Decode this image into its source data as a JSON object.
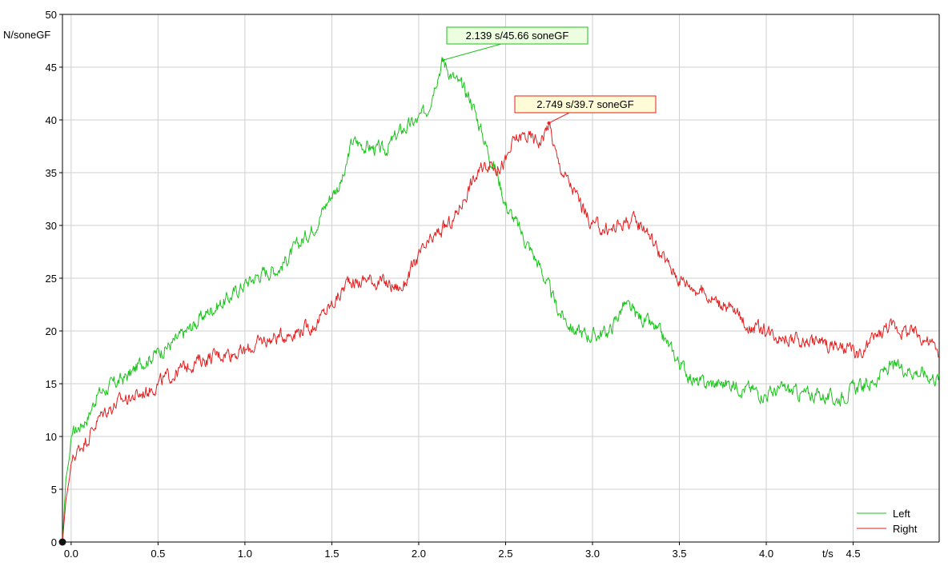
{
  "chart_data": {
    "type": "line",
    "ylabel": "N/soneGF",
    "xlabel": "t/s",
    "xlim": [
      -0.05,
      4.995
    ],
    "ylim": [
      0,
      50
    ],
    "x_ticks": [
      0.0,
      0.5,
      1.0,
      1.5,
      2.0,
      2.5,
      3.0,
      3.5,
      4.0,
      4.5
    ],
    "x_tick_labels": [
      "0.0",
      "0.5",
      "1.0",
      "1.5",
      "2.0",
      "2.5",
      "3.0",
      "3.5",
      "4.0",
      "4.5"
    ],
    "y_ticks": [
      0,
      5,
      10,
      15,
      20,
      25,
      30,
      35,
      40,
      45,
      50
    ],
    "y_tick_labels": [
      "0",
      "5",
      "10",
      "15",
      "20",
      "25",
      "30",
      "35",
      "40",
      "45",
      "50"
    ],
    "grid": true,
    "legend_position": "bottom-right",
    "series": [
      {
        "name": "Left",
        "color": "#1cc21c",
        "x": [
          -0.05,
          -0.04,
          -0.03,
          -0.01,
          0.0,
          0.05,
          0.1,
          0.15,
          0.2,
          0.25,
          0.3,
          0.35,
          0.4,
          0.45,
          0.5,
          0.55,
          0.6,
          0.7,
          0.8,
          0.9,
          1.0,
          1.1,
          1.2,
          1.3,
          1.4,
          1.5,
          1.55,
          1.58,
          1.6,
          1.62,
          1.7,
          1.8,
          1.85,
          1.9,
          2.0,
          2.05,
          2.1,
          2.139,
          2.2,
          2.3,
          2.4,
          2.45,
          2.5,
          2.6,
          2.7,
          2.8,
          2.9,
          3.0,
          3.1,
          3.18,
          3.25,
          3.3,
          3.4,
          3.5,
          3.6,
          3.7,
          3.8,
          3.9,
          4.0,
          4.1,
          4.2,
          4.3,
          4.4,
          4.5,
          4.6,
          4.7,
          4.8,
          4.9,
          4.995
        ],
        "values": [
          0,
          3,
          6,
          8,
          10,
          11,
          12,
          14,
          14.5,
          15,
          15.5,
          16,
          17,
          17.5,
          18,
          18.5,
          19,
          20.5,
          22,
          23,
          24.5,
          25.5,
          26,
          28,
          30,
          33,
          34,
          35,
          37,
          38,
          37.5,
          37,
          38,
          39,
          40,
          41,
          44,
          45.66,
          44,
          42,
          37,
          35,
          32,
          29,
          26,
          22,
          20,
          19.5,
          20,
          22.5,
          21.5,
          21,
          19.5,
          17,
          15,
          15,
          15,
          14.5,
          14,
          14.5,
          14,
          14,
          13.5,
          14.5,
          15,
          16.5,
          16.5,
          16,
          15.5
        ]
      },
      {
        "name": "Right",
        "color": "#e41f1f",
        "x": [
          -0.05,
          -0.04,
          -0.03,
          -0.01,
          0.0,
          0.05,
          0.1,
          0.15,
          0.2,
          0.25,
          0.3,
          0.4,
          0.5,
          0.6,
          0.7,
          0.8,
          0.9,
          1.0,
          1.1,
          1.2,
          1.3,
          1.4,
          1.5,
          1.55,
          1.6,
          1.65,
          1.7,
          1.8,
          1.9,
          2.0,
          2.1,
          2.2,
          2.3,
          2.4,
          2.45,
          2.5,
          2.55,
          2.6,
          2.7,
          2.749,
          2.8,
          2.9,
          3.0,
          3.1,
          3.2,
          3.3,
          3.4,
          3.5,
          3.6,
          3.7,
          3.8,
          3.9,
          4.0,
          4.1,
          4.2,
          4.3,
          4.4,
          4.5,
          4.55,
          4.6,
          4.7,
          4.8,
          4.9,
          4.995
        ],
        "values": [
          0,
          2,
          4,
          6,
          7.5,
          9,
          10,
          11.5,
          12.5,
          13,
          13.5,
          14,
          15,
          16,
          17,
          17.5,
          18,
          18,
          19,
          19.5,
          20,
          20.5,
          22.5,
          23.5,
          25,
          24.5,
          25,
          24.5,
          24,
          27,
          29,
          30.5,
          34,
          36,
          35.5,
          36,
          38,
          38.5,
          38,
          39.7,
          36,
          33,
          30,
          29.5,
          30.5,
          30,
          27,
          25,
          24,
          23,
          22,
          20.5,
          20,
          19.5,
          19,
          19,
          18.5,
          18,
          17.5,
          19,
          20.5,
          20,
          19.5,
          18
        ]
      }
    ],
    "annotations": [
      {
        "text": "2.139 s/45.66 soneGF",
        "x": 2.139,
        "y": 45.66,
        "series": "Left"
      },
      {
        "text": "2.749 s/39.7 soneGF",
        "x": 2.749,
        "y": 39.7,
        "series": "Right"
      }
    ],
    "colors": {
      "left_label_bg": "#ecfde0",
      "right_label_bg": "#fffbd6"
    }
  }
}
